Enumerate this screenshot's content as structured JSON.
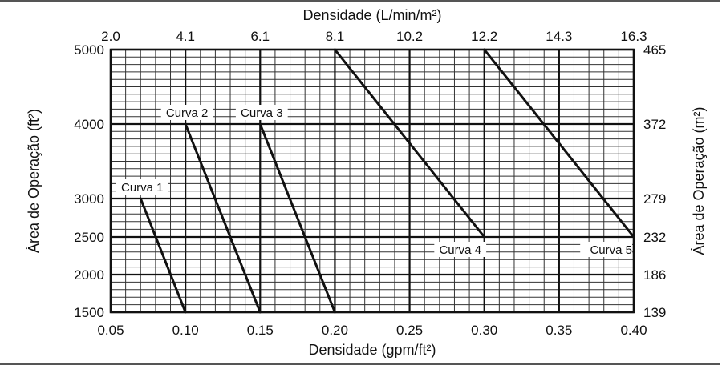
{
  "chart_data": {
    "type": "line",
    "xlabel": "Densidade (gpm/ft²)",
    "x2label": "Densidade (L/min/m²)",
    "ylabel": "Área de Operação (ft²)",
    "y2label": "Área de Operação (m²)",
    "xlim": [
      0.05,
      0.4
    ],
    "ylim": [
      1500,
      5000
    ],
    "x_ticks": [
      "0.05",
      "0.10",
      "0.15",
      "0.20",
      "0.25",
      "0.30",
      "0.35",
      "0.40"
    ],
    "x_tick_values": [
      0.05,
      0.1,
      0.15,
      0.2,
      0.25,
      0.3,
      0.35,
      0.4
    ],
    "x2_ticks": [
      "2.0",
      "4.1",
      "6.1",
      "8.1",
      "10.2",
      "12.2",
      "14.3",
      "16.3"
    ],
    "y_ticks": [
      "1500",
      "2000",
      "2500",
      "3000",
      "4000",
      "5000"
    ],
    "y_tick_values": [
      1500,
      2000,
      2500,
      3000,
      4000,
      5000
    ],
    "y2_ticks": [
      "139",
      "186",
      "232",
      "279",
      "372",
      "465"
    ],
    "grid": true,
    "series": [
      {
        "name": "Curva 1",
        "x": [
          0.07,
          0.1
        ],
        "y": [
          3000,
          1500
        ]
      },
      {
        "name": "Curva 2",
        "x": [
          0.1,
          0.15
        ],
        "y": [
          4000,
          1500
        ]
      },
      {
        "name": "Curva 3",
        "x": [
          0.15,
          0.2
        ],
        "y": [
          4000,
          1500
        ]
      },
      {
        "name": "Curva 4",
        "x": [
          0.2,
          0.3
        ],
        "y": [
          5000,
          2500
        ]
      },
      {
        "name": "Curva 5",
        "x": [
          0.3,
          0.4
        ],
        "y": [
          5000,
          2500
        ]
      }
    ]
  }
}
